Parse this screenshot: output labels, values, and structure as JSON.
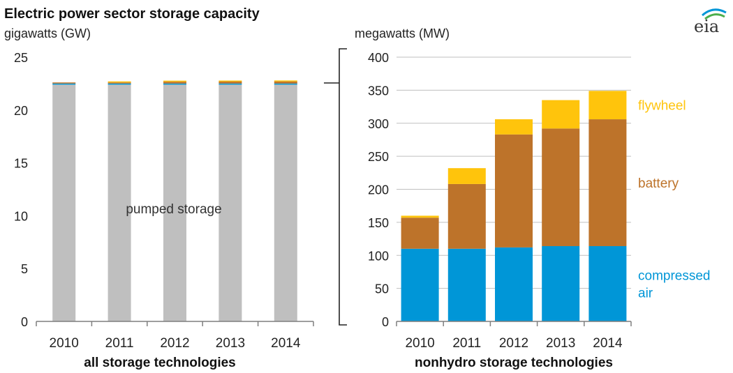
{
  "header": {
    "title": "Electric power sector storage capacity",
    "logo_text": "eia"
  },
  "colors": {
    "pumped_storage": "#BFBFBF",
    "compressed_air": "#0096D7",
    "battery": "#BD732A",
    "flywheel": "#FFC40C",
    "axis": "#7F7F7F",
    "grid": "#BFBFBF",
    "logo_blue": "#0096D7",
    "logo_green": "#4CAE4C"
  },
  "chart_data": [
    {
      "type": "bar",
      "stacked": true,
      "title": "Electric power sector storage capacity",
      "ylabel": "gigawatts (GW)",
      "xlabel": "all storage technologies",
      "categories": [
        "2010",
        "2011",
        "2012",
        "2013",
        "2014"
      ],
      "ylim": [
        0,
        25
      ],
      "yticks": [
        0,
        5,
        10,
        15,
        20,
        25
      ],
      "grid": false,
      "annotation": "pumped storage",
      "series": [
        {
          "name": "pumped storage",
          "values": [
            22.4,
            22.4,
            22.4,
            22.4,
            22.4
          ]
        },
        {
          "name": "compressed air",
          "values": [
            0.11,
            0.11,
            0.11,
            0.11,
            0.11
          ]
        },
        {
          "name": "battery",
          "values": [
            0.05,
            0.1,
            0.17,
            0.18,
            0.19
          ]
        },
        {
          "name": "flywheel",
          "values": [
            0.0,
            0.02,
            0.02,
            0.04,
            0.04
          ]
        }
      ]
    },
    {
      "type": "bar",
      "stacked": true,
      "ylabel": "megawatts (MW)",
      "xlabel": "nonhydro storage technologies",
      "categories": [
        "2010",
        "2011",
        "2012",
        "2013",
        "2014"
      ],
      "ylim": [
        0,
        400
      ],
      "yticks": [
        0,
        50,
        100,
        150,
        200,
        250,
        300,
        350,
        400
      ],
      "grid": true,
      "legend": "right",
      "series": [
        {
          "name": "compressed air",
          "label_lines": [
            "compressed",
            "air"
          ],
          "values": [
            110,
            110,
            112,
            114,
            114
          ]
        },
        {
          "name": "battery",
          "label_lines": [
            "battery"
          ],
          "values": [
            47,
            98,
            171,
            178,
            192
          ]
        },
        {
          "name": "flywheel",
          "label_lines": [
            "flywheel"
          ],
          "values": [
            3,
            24,
            23,
            43,
            43
          ]
        }
      ]
    }
  ]
}
